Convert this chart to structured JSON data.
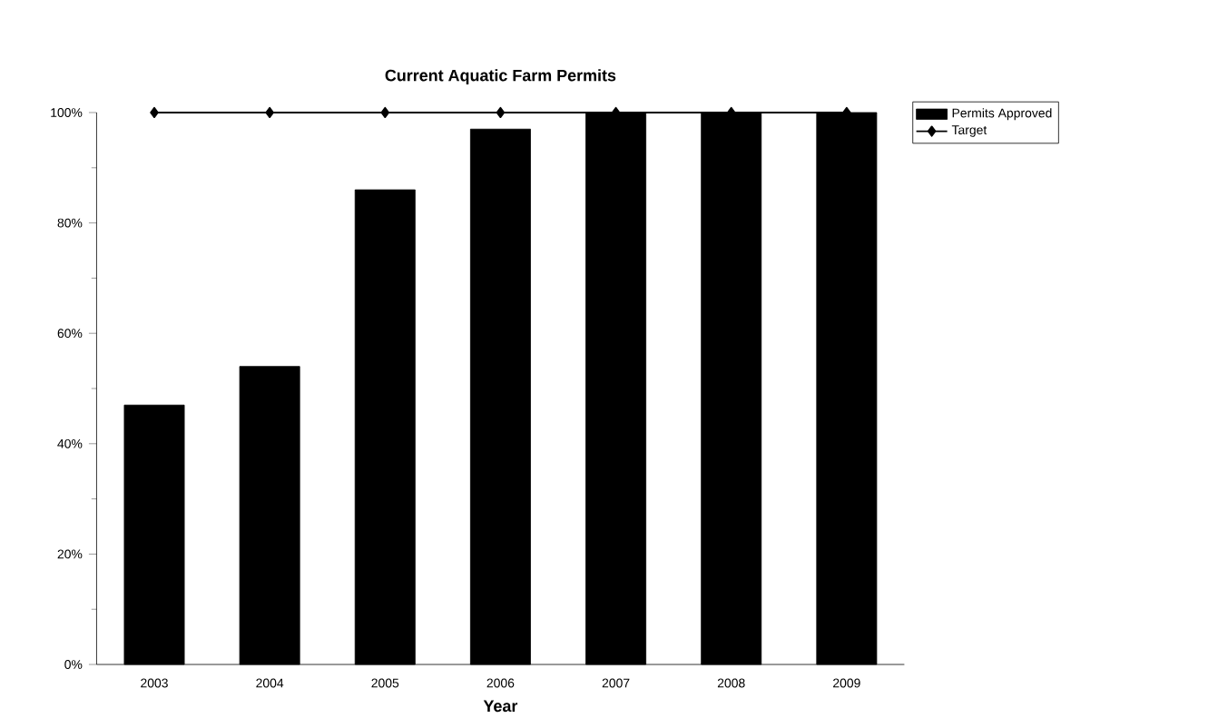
{
  "chart_data": {
    "type": "bar",
    "title": "Current Aquatic Farm Permits",
    "xlabel": "Year",
    "categories": [
      "2003",
      "2004",
      "2005",
      "2006",
      "2007",
      "2008",
      "2009"
    ],
    "series": [
      {
        "name": "Permits Approved",
        "color": "#000000",
        "values": [
          47,
          54,
          86,
          97,
          100,
          100,
          100
        ]
      },
      {
        "name": "Target",
        "type": "line",
        "color": "#000000",
        "marker": "diamond",
        "values": [
          100,
          100,
          100,
          100,
          100,
          100,
          100
        ]
      }
    ],
    "ylim": [
      0,
      100
    ],
    "yticks": [
      {
        "value": 0,
        "label": "0%"
      },
      {
        "value": 20,
        "label": "20%"
      },
      {
        "value": 40,
        "label": "40%"
      },
      {
        "value": 60,
        "label": "60%"
      },
      {
        "value": 80,
        "label": "80%"
      },
      {
        "value": 100,
        "label": "100%"
      }
    ],
    "grid": false,
    "legend": "top right"
  }
}
